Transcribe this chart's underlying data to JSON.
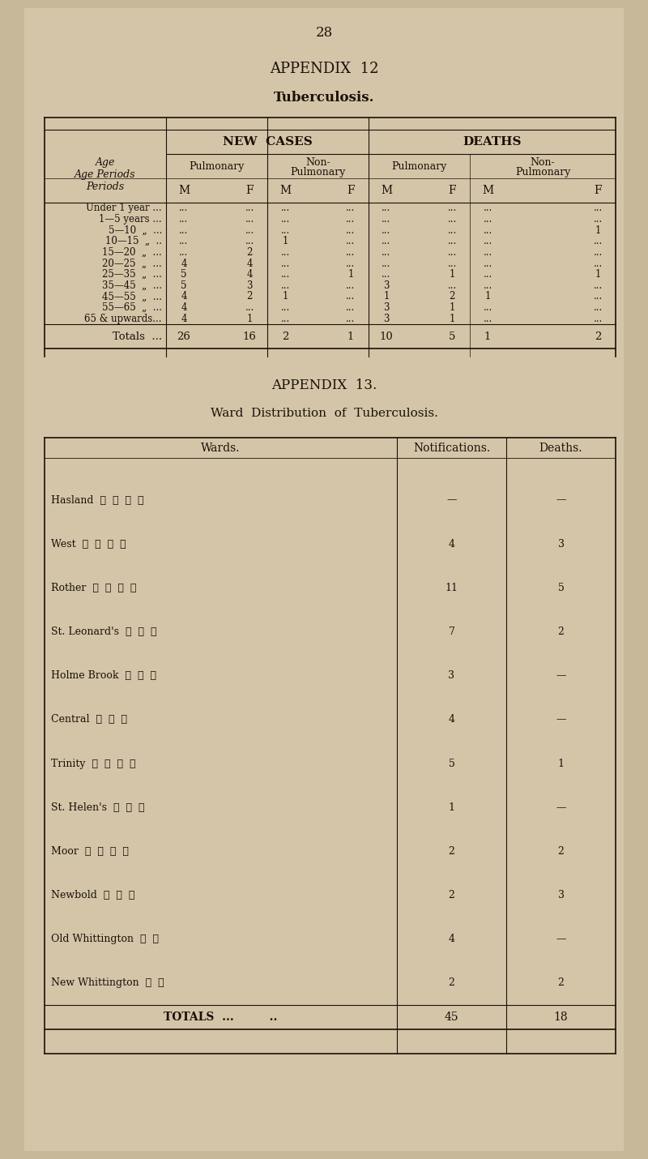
{
  "bg_color": "#c8b89a",
  "page_color": "#d4c5a9",
  "text_color": "#1a1008",
  "page_num": "28",
  "appendix12_title": "APPENDIX  12",
  "appendix12_subtitle": "Tuberculosis.",
  "table1_header_row1": [
    "",
    "NEW CASES",
    "",
    "DEATHS",
    ""
  ],
  "table1_header_row2": [
    "Age Periods",
    "Pulmonary",
    "Non-\nPulmonary",
    "Pulmonary",
    "Non-\nPulmonary"
  ],
  "table1_header_row3": [
    "",
    "M    F",
    "M    F",
    "M    F",
    "M    F"
  ],
  "table1_rows": [
    [
      "Under 1 year ...",
      "...    ...",
      "...    ...",
      "...    ...",
      "...    ..."
    ],
    [
      "1—5 years ...",
      "...    ...",
      "...    ...",
      "...    ...",
      "...    ..."
    ],
    [
      "5—10  „  ...",
      "...    ...",
      "...    ...",
      "...    ...",
      "...       1"
    ],
    [
      "10—15  „  ..",
      "...    ...",
      "  1    ...",
      "...    ...",
      "...    ..."
    ],
    [
      "15—20  „  ...",
      "...       2",
      "...    ...",
      "...    ...",
      "...    ..."
    ],
    [
      "20—25  „  ...",
      "  4       4",
      "...    ...",
      "...    ...",
      "...    ..."
    ],
    [
      "25—35  „  ...",
      "  5       4",
      "...       1",
      "...       1",
      "...       1"
    ],
    [
      "35—45  „  ...",
      "  5       3",
      "...    ...",
      "  3    ...",
      "...    ..."
    ],
    [
      "45—55  „  ...",
      "  4       2",
      "  1    ...",
      "  1       2",
      "  1    ..."
    ],
    [
      "55—65  „  ...",
      "  4    ...",
      "...    ...",
      "  3       1",
      "...    ..."
    ],
    [
      "65 & upwards...",
      "  4       1",
      "...    ...",
      "  3       1",
      "...    ..."
    ]
  ],
  "table1_totals": [
    "Totals  ...",
    "26      16",
    "2       1",
    "10       5",
    "1       2"
  ],
  "appendix13_title": "APPENDIX  13.",
  "appendix13_subtitle": "Ward  Distribution  of  Tuberculosis.",
  "table2_headers": [
    "Wards.",
    "Notifications.",
    "Deaths."
  ],
  "table2_rows": [
    [
      "Hasland  ... ... ... ..",
      "—",
      "—"
    ],
    [
      "West ... ... ... ...",
      "4",
      "3"
    ],
    [
      "Rother ... ... ... ..",
      "11",
      "5"
    ],
    [
      "St. Leonard's ... ... ..",
      "7",
      "2"
    ],
    [
      "Holme Brook ... ... ..",
      "3",
      "—"
    ],
    [
      "Central ... ... ..",
      "4",
      "—"
    ],
    [
      "Trinity ... ... ... ...",
      "5",
      "1"
    ],
    [
      "St. Helen's ... ... ...",
      "1",
      "—"
    ],
    [
      "Moor ... ... ... ...",
      "2",
      "2"
    ],
    [
      "Newbold ... ... ...",
      "2",
      "3"
    ],
    [
      "Old Whittington ... ...",
      "4",
      "—"
    ],
    [
      "New Whittington ... ..",
      "2",
      "2"
    ]
  ],
  "table2_totals": [
    "TOTALS  ... ..",
    "45",
    "18"
  ]
}
